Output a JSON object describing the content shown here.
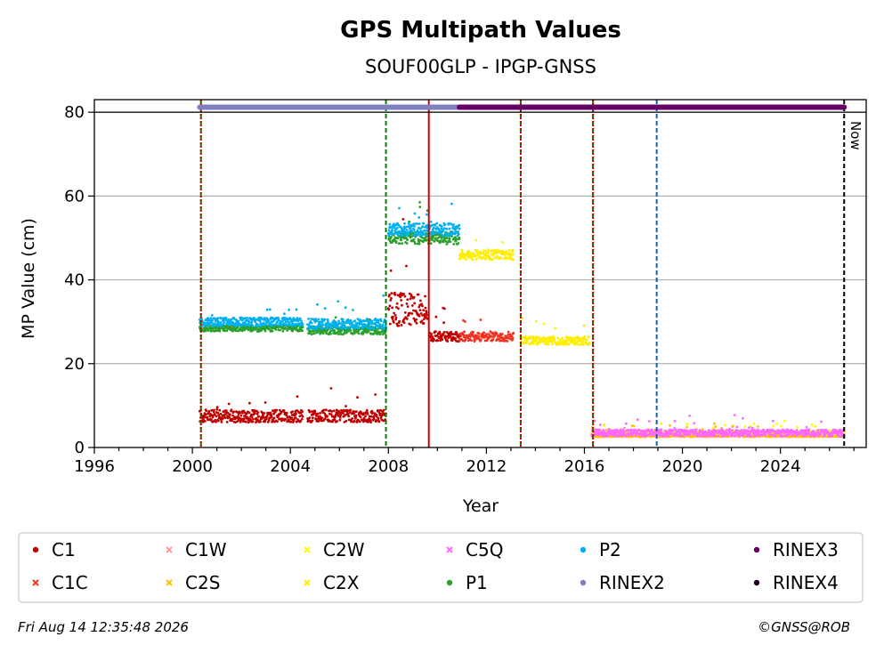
{
  "chart_data": {
    "type": "scatter",
    "title": "GPS Multipath Values",
    "subtitle": "SOUF00GLP - IPGP-GNSS",
    "xlabel": "Year",
    "ylabel": "MP Value (cm)",
    "xlim": [
      1996,
      2027.5
    ],
    "ylim": [
      0,
      83
    ],
    "x_ticks": [
      1996,
      2000,
      2004,
      2008,
      2012,
      2016,
      2020,
      2024
    ],
    "y_ticks": [
      0,
      20,
      40,
      60,
      80
    ],
    "grid": "horizontal",
    "legend_position": "below",
    "legend": [
      {
        "name": "C1",
        "color": "#c00000",
        "marker": "dot"
      },
      {
        "name": "C1C",
        "color": "#ee3322",
        "marker": "x"
      },
      {
        "name": "C1W",
        "color": "#ff9999",
        "marker": "x"
      },
      {
        "name": "C2S",
        "color": "#ffc000",
        "marker": "x"
      },
      {
        "name": "C2W",
        "color": "#ffff00",
        "marker": "x"
      },
      {
        "name": "C2X",
        "color": "#ffee00",
        "marker": "x"
      },
      {
        "name": "C5Q",
        "color": "#ff66ff",
        "marker": "x"
      },
      {
        "name": "P1",
        "color": "#2ca02c",
        "marker": "dot"
      },
      {
        "name": "P2",
        "color": "#00b0f0",
        "marker": "dot"
      },
      {
        "name": "RINEX2",
        "color": "#8080c0",
        "marker": "dot"
      },
      {
        "name": "RINEX3",
        "color": "#660066",
        "marker": "dot"
      },
      {
        "name": "RINEX4",
        "color": "#220022",
        "marker": "dot"
      }
    ],
    "series": [
      {
        "name": "C1",
        "color": "#c00000",
        "segments": [
          [
            2000.3,
            2004.5,
            7.5,
            1.5
          ],
          [
            2004.7,
            2007.9,
            7.5,
            1.5
          ],
          [
            2008.0,
            2009.6,
            33,
            4
          ],
          [
            2009.7,
            2010.9,
            26.5,
            1.2
          ]
        ]
      },
      {
        "name": "C1C",
        "color": "#ee3322",
        "segments": [
          [
            2010.9,
            2013.1,
            26.5,
            1.2
          ]
        ]
      },
      {
        "name": "C1W",
        "color": "#ff9999",
        "segments": [
          [
            2016.3,
            2026.6,
            3,
            0.4
          ]
        ]
      },
      {
        "name": "C2S",
        "color": "#ffc000",
        "segments": [
          [
            2016.3,
            2026.6,
            3,
            0.5
          ]
        ]
      },
      {
        "name": "C2W",
        "color": "#ffff00",
        "segments": [
          [
            2016.3,
            2026.6,
            3.5,
            0.5
          ]
        ]
      },
      {
        "name": "C2X",
        "color": "#ffee00",
        "segments": [
          [
            2010.9,
            2013.1,
            46,
            1.2
          ],
          [
            2013.4,
            2016.2,
            25.5,
            1
          ]
        ]
      },
      {
        "name": "C5Q",
        "color": "#ff66ff",
        "segments": [
          [
            2016.3,
            2026.6,
            3.5,
            0.8
          ]
        ]
      },
      {
        "name": "P1",
        "color": "#2ca02c",
        "segments": [
          [
            2000.3,
            2004.5,
            28.5,
            0.8
          ],
          [
            2004.7,
            2007.9,
            28,
            1
          ],
          [
            2008.0,
            2010.9,
            50,
            1.5
          ]
        ]
      },
      {
        "name": "P2",
        "color": "#00b0f0",
        "segments": [
          [
            2000.3,
            2004.5,
            30,
            1
          ],
          [
            2004.7,
            2007.9,
            29.5,
            1.2
          ],
          [
            2008.0,
            2010.9,
            52,
            1.5
          ]
        ]
      }
    ],
    "rinex_bar": [
      {
        "name": "RINEX2",
        "color": "#8080c0",
        "from": 2000.3,
        "to": 2010.9
      },
      {
        "name": "RINEX3",
        "color": "#660066",
        "from": 2010.9,
        "to": 2026.6
      }
    ],
    "events": [
      {
        "x": 2000.35,
        "color": "#008000",
        "style": "dashed"
      },
      {
        "x": 2000.35,
        "color": "#cc0000",
        "style": "dotted"
      },
      {
        "x": 2007.9,
        "color": "#008000",
        "style": "dashed"
      },
      {
        "x": 2009.65,
        "color": "#cc0000",
        "style": "solid"
      },
      {
        "x": 2013.4,
        "color": "#008000",
        "style": "dashed"
      },
      {
        "x": 2013.4,
        "color": "#cc0000",
        "style": "dotted"
      },
      {
        "x": 2016.35,
        "color": "#008000",
        "style": "dashed"
      },
      {
        "x": 2016.35,
        "color": "#cc0000",
        "style": "dotted"
      },
      {
        "x": 2018.95,
        "color": "#1060b0",
        "style": "dashed"
      },
      {
        "x": 2026.6,
        "color": "#000000",
        "style": "dashed"
      }
    ],
    "now_label": "Now",
    "now_x": 2026.6
  },
  "footer": {
    "timestamp": "Fri Aug 14 12:35:48 2026",
    "credit": "©GNSS@ROB"
  }
}
